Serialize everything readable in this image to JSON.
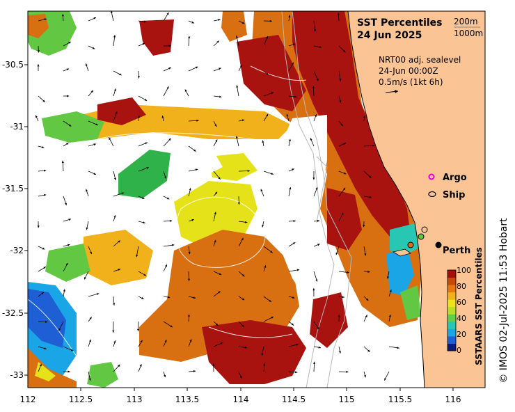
{
  "title": "SST Percentiles",
  "date": "24 Jun 2025",
  "depth_legend": [
    "200m",
    "1000m"
  ],
  "info": {
    "line1": "NRT00 adj. sealevel",
    "line2": "24-Jun 00:00Z",
    "line3": "0.5m/s (1kt 6h)"
  },
  "legend_items": [
    {
      "label": "Argo",
      "color": "#e000e0"
    },
    {
      "label": "Ship",
      "color": "#000000"
    }
  ],
  "place_label": "Perth",
  "x_ticks": [
    "112",
    "112.5",
    "113",
    "113.5",
    "114",
    "114.5",
    "115",
    "115.5",
    "116"
  ],
  "y_ticks": [
    "-30.5",
    "-31",
    "-31.5",
    "-32",
    "-32.5",
    "-33"
  ],
  "colorbar": {
    "title": "SSTAARS SST Percentiles",
    "ticks": [
      "100",
      "80",
      "60",
      "40",
      "20",
      "0"
    ],
    "colors": [
      "#0a1a7a",
      "#1f5fd6",
      "#1aa6e6",
      "#27c7b4",
      "#5fcf4a",
      "#b8de24",
      "#ece31a",
      "#f1b11a",
      "#e6760f",
      "#c84a0a",
      "#a50f0a"
    ]
  },
  "credit": "© IMOS 02-Jul-2025 11:53 Hobart",
  "colors": {
    "land": "#fbc495",
    "ocean_missing": "#ffffff",
    "very_warm": "#a8120f",
    "warm": "#d86f10",
    "mid": "#f1b11a",
    "neutral": "#e5e21a",
    "cool": "#62c843",
    "cold": "#1aa6e6"
  }
}
